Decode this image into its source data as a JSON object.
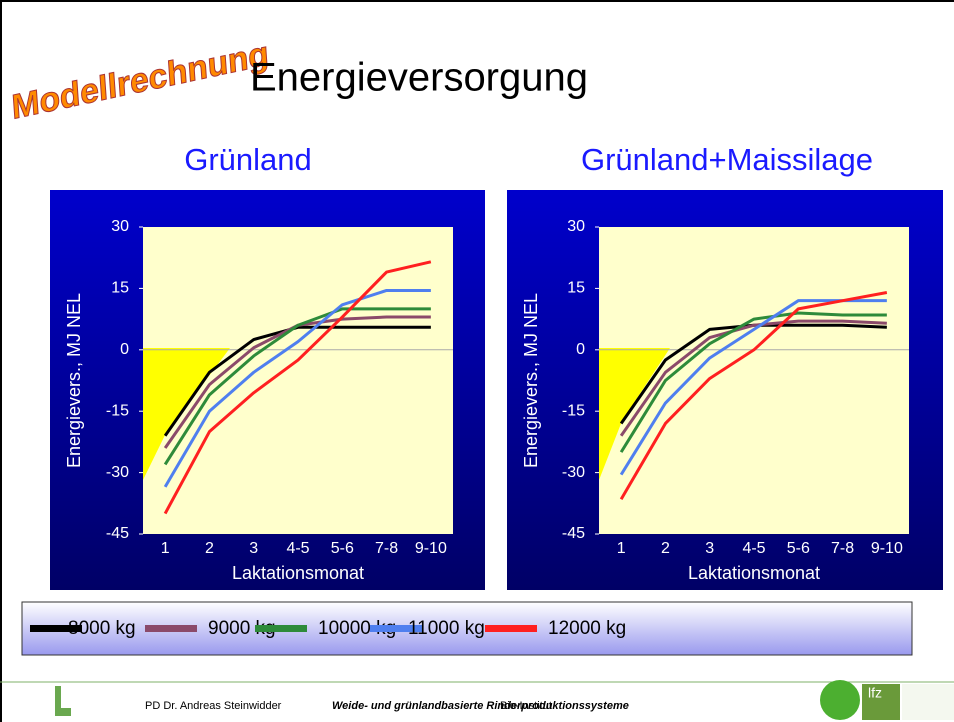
{
  "slide": {
    "badge": "Modellrechnung",
    "title": "Energieversorgung"
  },
  "chart_data": [
    {
      "type": "line",
      "title": "Grünland",
      "y_label": "Energievers., MJ NEL",
      "x_label": "Laktationsmonat",
      "categories": [
        "1",
        "2",
        "3",
        "4-5",
        "5-6",
        "7-8",
        "9-10"
      ],
      "ylim": [
        -45,
        30
      ],
      "yticks": [
        -45,
        -30,
        -15,
        0,
        15,
        30
      ],
      "grid": false,
      "series": [
        {
          "name": "8000 kg",
          "color": "#000000",
          "values": [
            -21,
            -5.5,
            2.5,
            5.5,
            5.5,
            5.5,
            5.5
          ]
        },
        {
          "name": "9000 kg",
          "color": "#8b4a6a",
          "values": [
            -24,
            -8.5,
            0.5,
            6,
            7.5,
            8,
            8
          ]
        },
        {
          "name": "10000 kg",
          "color": "#2e8b3a",
          "values": [
            -28,
            -11,
            -1.5,
            6,
            10,
            10,
            10
          ]
        },
        {
          "name": "11000 kg",
          "color": "#4f7fef",
          "values": [
            -33.5,
            -15,
            -5.5,
            2,
            11,
            14.5,
            14.5
          ]
        },
        {
          "name": "12000 kg",
          "color": "#ff2020",
          "values": [
            -40,
            -20,
            -10.5,
            -2.5,
            8,
            19,
            21.5
          ]
        }
      ]
    },
    {
      "type": "line",
      "title": "Grünland+Maissilage",
      "y_label": "Energievers., MJ NEL",
      "x_label": "Laktationsmonat",
      "categories": [
        "1",
        "2",
        "3",
        "4-5",
        "5-6",
        "7-8",
        "9-10"
      ],
      "ylim": [
        -45,
        30
      ],
      "yticks": [
        -45,
        -30,
        -15,
        0,
        15,
        30
      ],
      "grid": false,
      "series": [
        {
          "color": "#000000",
          "values": [
            -18,
            -2.5,
            5,
            6,
            6,
            6,
            5.5
          ]
        },
        {
          "color": "#8b4a6a",
          "values": [
            -21,
            -5.5,
            3,
            6,
            7,
            7,
            6.5
          ]
        },
        {
          "color": "#2e8b3a",
          "values": [
            -25,
            -7.5,
            1.5,
            7.5,
            9,
            8.5,
            8.5
          ]
        },
        {
          "color": "#4f7fef",
          "values": [
            -30.5,
            -13,
            -2,
            5,
            12,
            12,
            12
          ]
        },
        {
          "color": "#ff2020",
          "values": [
            -36.5,
            -18,
            -7,
            0,
            10,
            12,
            14
          ]
        }
      ]
    }
  ],
  "footer": {
    "author": "PD Dr. Andreas Steinwidder",
    "course": "Weide- und grünlandbasierte Rinderproduktionssysteme",
    "institute": "Bio-Institut",
    "logo_text": "lfz"
  }
}
